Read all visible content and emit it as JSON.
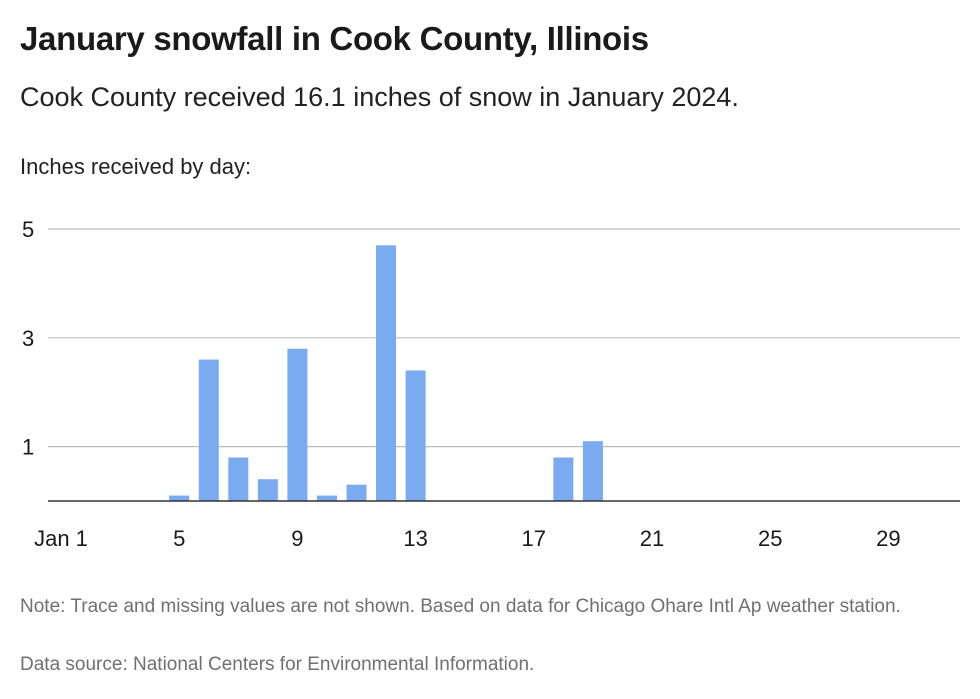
{
  "header": {
    "title": "January snowfall in Cook County, Illinois",
    "subtitle": "Cook County received 16.1 inches of snow in January 2024.",
    "ylabel": "Inches received by day:"
  },
  "footer": {
    "note": "Note: Trace and missing values are not shown. Based on data for Chicago Ohare Intl Ap weather station.",
    "source": "Data source: National Centers for Environmental Information."
  },
  "colors": {
    "bar": "#7aaaf0",
    "grid": "#bdbdbd",
    "axis": "#333333"
  },
  "chart_data": {
    "type": "bar",
    "title": "January snowfall in Cook County, Illinois",
    "ylabel": "Inches received by day:",
    "ylim": [
      0,
      5
    ],
    "grid": true,
    "yticks": [
      1,
      3,
      5
    ],
    "xticks": [
      {
        "day": 1,
        "label": "Jan 1"
      },
      {
        "day": 5,
        "label": "5"
      },
      {
        "day": 9,
        "label": "9"
      },
      {
        "day": 13,
        "label": "13"
      },
      {
        "day": 17,
        "label": "17"
      },
      {
        "day": 21,
        "label": "21"
      },
      {
        "day": 25,
        "label": "25"
      },
      {
        "day": 29,
        "label": "29"
      }
    ],
    "days": [
      1,
      2,
      3,
      4,
      5,
      6,
      7,
      8,
      9,
      10,
      11,
      12,
      13,
      14,
      15,
      16,
      17,
      18,
      19,
      20,
      21,
      22,
      23,
      24,
      25,
      26,
      27,
      28,
      29,
      30,
      31
    ],
    "values": [
      0,
      0,
      0,
      0,
      0.1,
      2.6,
      0.8,
      0.4,
      2.8,
      0.1,
      0.3,
      4.7,
      2.4,
      0,
      0,
      0,
      0,
      0.8,
      1.1,
      0,
      0,
      0,
      0,
      0,
      0,
      0,
      0,
      0,
      0,
      0,
      0
    ]
  }
}
